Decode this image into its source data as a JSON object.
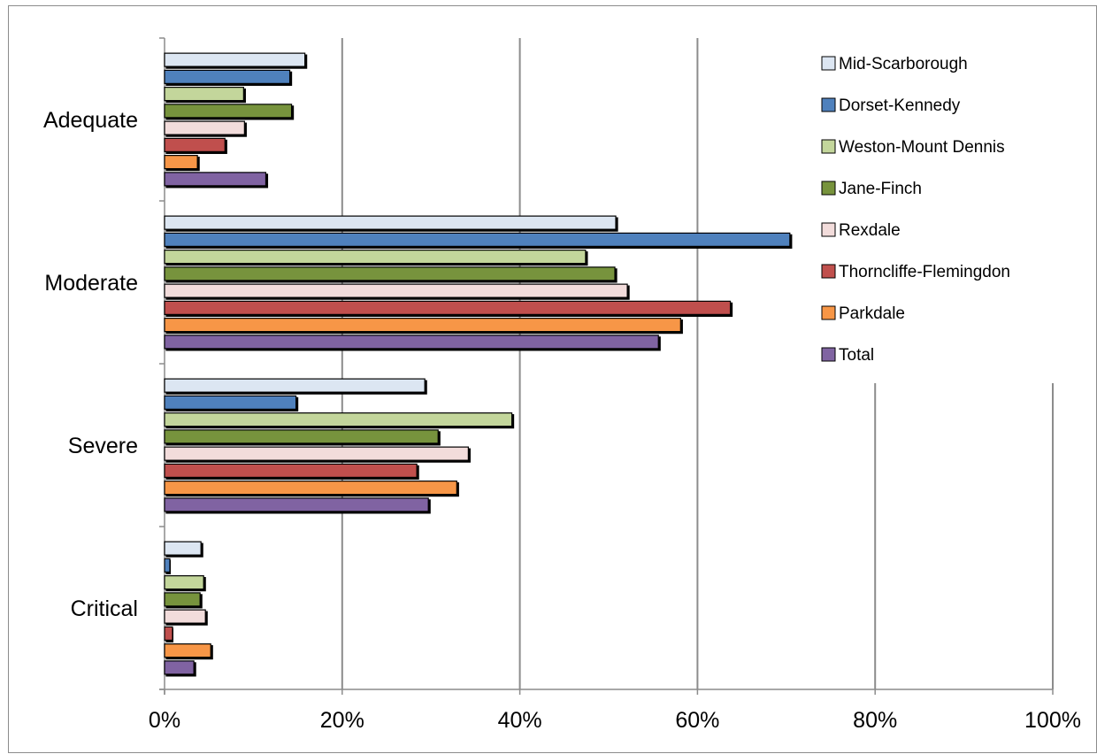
{
  "chart_data": {
    "type": "bar",
    "orientation": "horizontal",
    "categories": [
      "Adequate",
      "Moderate",
      "Severe",
      "Critical"
    ],
    "series": [
      {
        "name": "Mid-Scarborough",
        "color": "#dce6f2",
        "values": [
          15.8,
          50.8,
          29.3,
          4.1
        ]
      },
      {
        "name": "Dorset-Kennedy",
        "color": "#4f81bd",
        "values": [
          14.1,
          70.4,
          14.8,
          0.6
        ]
      },
      {
        "name": "Weston-Mount Dennis",
        "color": "#c3d69b",
        "values": [
          8.9,
          47.4,
          39.1,
          4.4
        ]
      },
      {
        "name": "Jane-Finch",
        "color": "#77933c",
        "values": [
          14.3,
          50.7,
          30.8,
          4.0
        ]
      },
      {
        "name": "Rexdale",
        "color": "#f2dcdb",
        "values": [
          9.0,
          52.1,
          34.2,
          4.6
        ]
      },
      {
        "name": "Thorncliffe-Flemingdon",
        "color": "#c0504d",
        "values": [
          6.8,
          63.7,
          28.4,
          0.9
        ]
      },
      {
        "name": "Parkdale",
        "color": "#f79646",
        "values": [
          3.7,
          58.1,
          32.9,
          5.2
        ]
      },
      {
        "name": "Total",
        "color": "#8064a2",
        "values": [
          11.4,
          55.6,
          29.7,
          3.3
        ]
      }
    ],
    "xlim": [
      0,
      100
    ],
    "xticks": [
      "0%",
      "20%",
      "40%",
      "60%",
      "80%",
      "100%"
    ],
    "grid": true,
    "legend_position": "top-right"
  }
}
